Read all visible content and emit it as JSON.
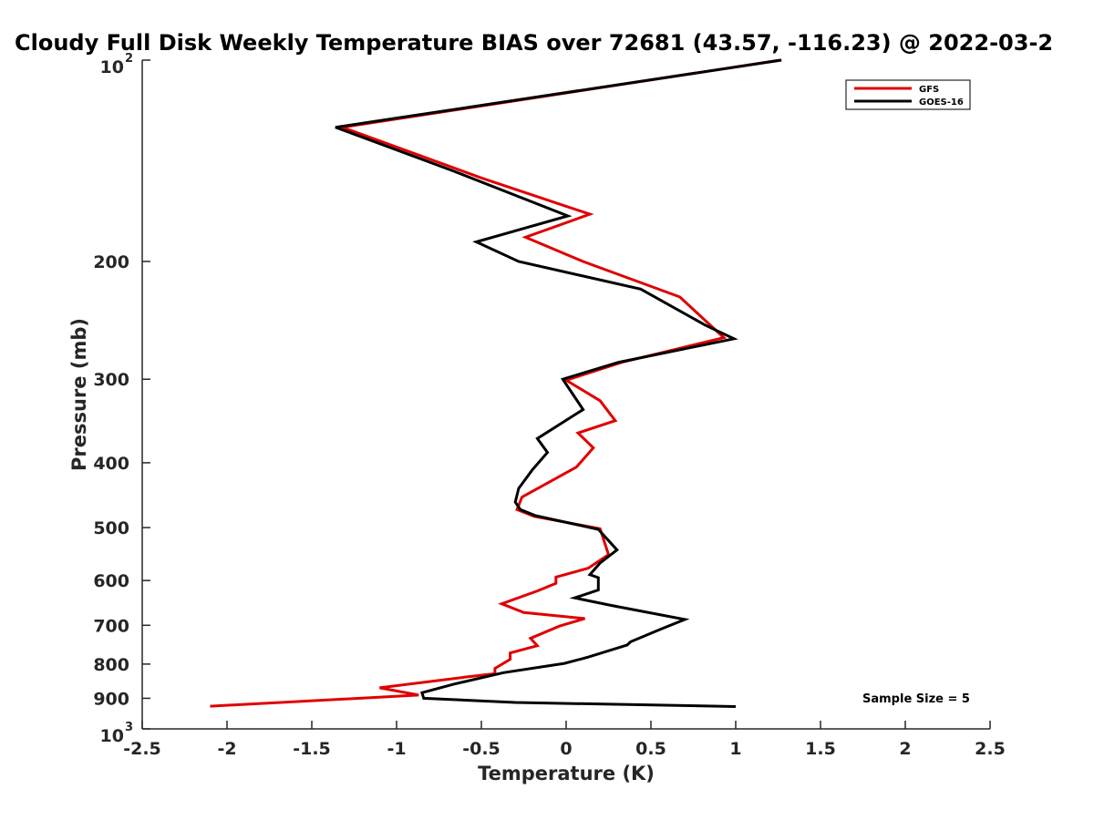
{
  "chart_data": {
    "type": "line",
    "title": "Cloudy Full Disk Weekly Temperature BIAS over 72681 (43.57, -116.23) @ 2022-03-2",
    "xlabel": "Temperature (K)",
    "ylabel": "Pressure (mb)",
    "xlim": [
      -2.5,
      2.5
    ],
    "ylim": [
      100,
      1000
    ],
    "y_scale": "log",
    "y_reversed": true,
    "grid": false,
    "legend_position": "top-right",
    "x_ticks": [
      "-2.5",
      "-2",
      "-1.5",
      "-1",
      "-0.5",
      "0",
      "0.5",
      "1",
      "1.5",
      "2",
      "2.5"
    ],
    "y_ticks": [
      {
        "value": 100,
        "label": "10",
        "sup": "2"
      },
      {
        "value": 200,
        "label": "200"
      },
      {
        "value": 300,
        "label": "300"
      },
      {
        "value": 400,
        "label": "400"
      },
      {
        "value": 500,
        "label": "500"
      },
      {
        "value": 600,
        "label": "600"
      },
      {
        "value": 700,
        "label": "700"
      },
      {
        "value": 800,
        "label": "800"
      },
      {
        "value": 900,
        "label": "900"
      },
      {
        "value": 1000,
        "label": "10",
        "sup": "3"
      }
    ],
    "annotation": "Sample Size = 5",
    "series": [
      {
        "name": "GFS",
        "color": "#e00000",
        "points": [
          {
            "x": 1.26,
            "p": 100
          },
          {
            "x": -1.32,
            "p": 126
          },
          {
            "x": -0.5,
            "p": 150
          },
          {
            "x": 0.14,
            "p": 170
          },
          {
            "x": -0.24,
            "p": 184
          },
          {
            "x": 0.1,
            "p": 200
          },
          {
            "x": 0.67,
            "p": 226
          },
          {
            "x": 0.93,
            "p": 260
          },
          {
            "x": 0.33,
            "p": 283
          },
          {
            "x": 0.0,
            "p": 301
          },
          {
            "x": 0.2,
            "p": 323
          },
          {
            "x": 0.29,
            "p": 346
          },
          {
            "x": 0.07,
            "p": 361
          },
          {
            "x": 0.16,
            "p": 380
          },
          {
            "x": 0.06,
            "p": 406
          },
          {
            "x": -0.26,
            "p": 450
          },
          {
            "x": -0.29,
            "p": 470
          },
          {
            "x": -0.19,
            "p": 481
          },
          {
            "x": 0.2,
            "p": 502
          },
          {
            "x": 0.25,
            "p": 549
          },
          {
            "x": 0.13,
            "p": 575
          },
          {
            "x": -0.06,
            "p": 593
          },
          {
            "x": -0.06,
            "p": 606
          },
          {
            "x": -0.17,
            "p": 622
          },
          {
            "x": -0.38,
            "p": 650
          },
          {
            "x": -0.25,
            "p": 670
          },
          {
            "x": 0.11,
            "p": 684
          },
          {
            "x": -0.04,
            "p": 702
          },
          {
            "x": -0.21,
            "p": 732
          },
          {
            "x": -0.17,
            "p": 751
          },
          {
            "x": -0.33,
            "p": 770
          },
          {
            "x": -0.33,
            "p": 787
          },
          {
            "x": -0.42,
            "p": 812
          },
          {
            "x": -0.42,
            "p": 827
          },
          {
            "x": -0.6,
            "p": 837
          },
          {
            "x": -1.1,
            "p": 868
          },
          {
            "x": -0.87,
            "p": 890
          },
          {
            "x": -2.1,
            "p": 925
          }
        ]
      },
      {
        "name": "GOES-16",
        "color": "#000000",
        "points": [
          {
            "x": 1.27,
            "p": 100
          },
          {
            "x": -1.36,
            "p": 126
          },
          {
            "x": -0.68,
            "p": 146
          },
          {
            "x": 0.01,
            "p": 171
          },
          {
            "x": -0.53,
            "p": 187
          },
          {
            "x": -0.28,
            "p": 200
          },
          {
            "x": 0.44,
            "p": 220
          },
          {
            "x": 0.82,
            "p": 249
          },
          {
            "x": 0.99,
            "p": 261
          },
          {
            "x": 0.31,
            "p": 283
          },
          {
            "x": -0.02,
            "p": 300
          },
          {
            "x": 0.1,
            "p": 333
          },
          {
            "x": -0.17,
            "p": 368
          },
          {
            "x": -0.11,
            "p": 386
          },
          {
            "x": -0.2,
            "p": 410
          },
          {
            "x": -0.28,
            "p": 437
          },
          {
            "x": -0.3,
            "p": 458
          },
          {
            "x": -0.27,
            "p": 470
          },
          {
            "x": -0.18,
            "p": 480
          },
          {
            "x": 0.19,
            "p": 503
          },
          {
            "x": 0.3,
            "p": 540
          },
          {
            "x": 0.2,
            "p": 565
          },
          {
            "x": 0.14,
            "p": 588
          },
          {
            "x": 0.19,
            "p": 594
          },
          {
            "x": 0.19,
            "p": 620
          },
          {
            "x": 0.05,
            "p": 637
          },
          {
            "x": 0.27,
            "p": 654
          },
          {
            "x": 0.7,
            "p": 686
          },
          {
            "x": 0.56,
            "p": 709
          },
          {
            "x": 0.38,
            "p": 741
          },
          {
            "x": 0.36,
            "p": 749
          },
          {
            "x": 0.13,
            "p": 781
          },
          {
            "x": -0.01,
            "p": 798
          },
          {
            "x": -0.37,
            "p": 824
          },
          {
            "x": -0.66,
            "p": 857
          },
          {
            "x": -0.85,
            "p": 883
          },
          {
            "x": -0.84,
            "p": 900
          },
          {
            "x": -0.3,
            "p": 913
          },
          {
            "x": 1.0,
            "p": 926
          }
        ]
      }
    ]
  }
}
